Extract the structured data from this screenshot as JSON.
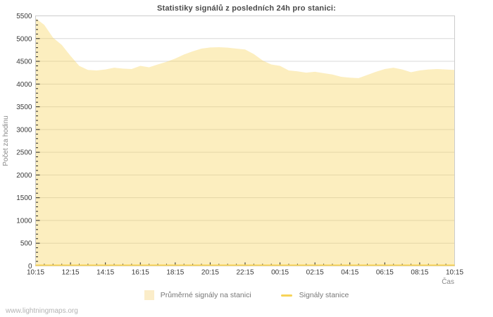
{
  "chart_data": {
    "type": "area",
    "title": "Statistiky signálů z posledních 24h pro stanici:",
    "xlabel": "Čas",
    "ylabel": "Počet za hodinu",
    "ylim": [
      0,
      5500
    ],
    "y_major_step": 500,
    "y_minor_step": 100,
    "x_hours_span": 24,
    "x_major_step_hours": 2,
    "x_minor_step_hours": 0.5,
    "x_tick_labels": [
      "10:15",
      "12:15",
      "14:15",
      "16:15",
      "18:15",
      "20:15",
      "22:15",
      "00:15",
      "02:15",
      "04:15",
      "06:15",
      "08:15",
      "10:15"
    ],
    "grid": "horizontal-only",
    "legend_position": "bottom-center",
    "colors": {
      "area_fill": "rgba(247,211,88,0.38)",
      "area_fill_flat": "#fbedc9",
      "line": "#f7d358",
      "grid": "#d9d9d9",
      "plot_border": "#cccccc",
      "tick": "#222222",
      "tick_label": "#3a3a3a",
      "axis_label": "#8a8a8a",
      "title": "#4a4a4a",
      "legend_text": "#777777",
      "watermark": "#b3b3b3"
    },
    "series": [
      {
        "name": "Průměrné signály na stanici",
        "type": "area",
        "x_start_hour": 0,
        "x_step_hours": 0.5,
        "values": [
          5450,
          5300,
          5020,
          4860,
          4620,
          4400,
          4310,
          4300,
          4320,
          4360,
          4340,
          4330,
          4400,
          4370,
          4430,
          4490,
          4560,
          4650,
          4720,
          4780,
          4805,
          4810,
          4800,
          4780,
          4760,
          4660,
          4520,
          4430,
          4400,
          4300,
          4280,
          4250,
          4270,
          4240,
          4210,
          4160,
          4140,
          4130,
          4200,
          4270,
          4330,
          4360,
          4320,
          4260,
          4300,
          4320,
          4330,
          4320,
          4310
        ]
      },
      {
        "name": "Signály stanice",
        "type": "line",
        "constant_value": 0
      }
    ]
  },
  "footer": {
    "watermark": "www.lightningmaps.org"
  }
}
